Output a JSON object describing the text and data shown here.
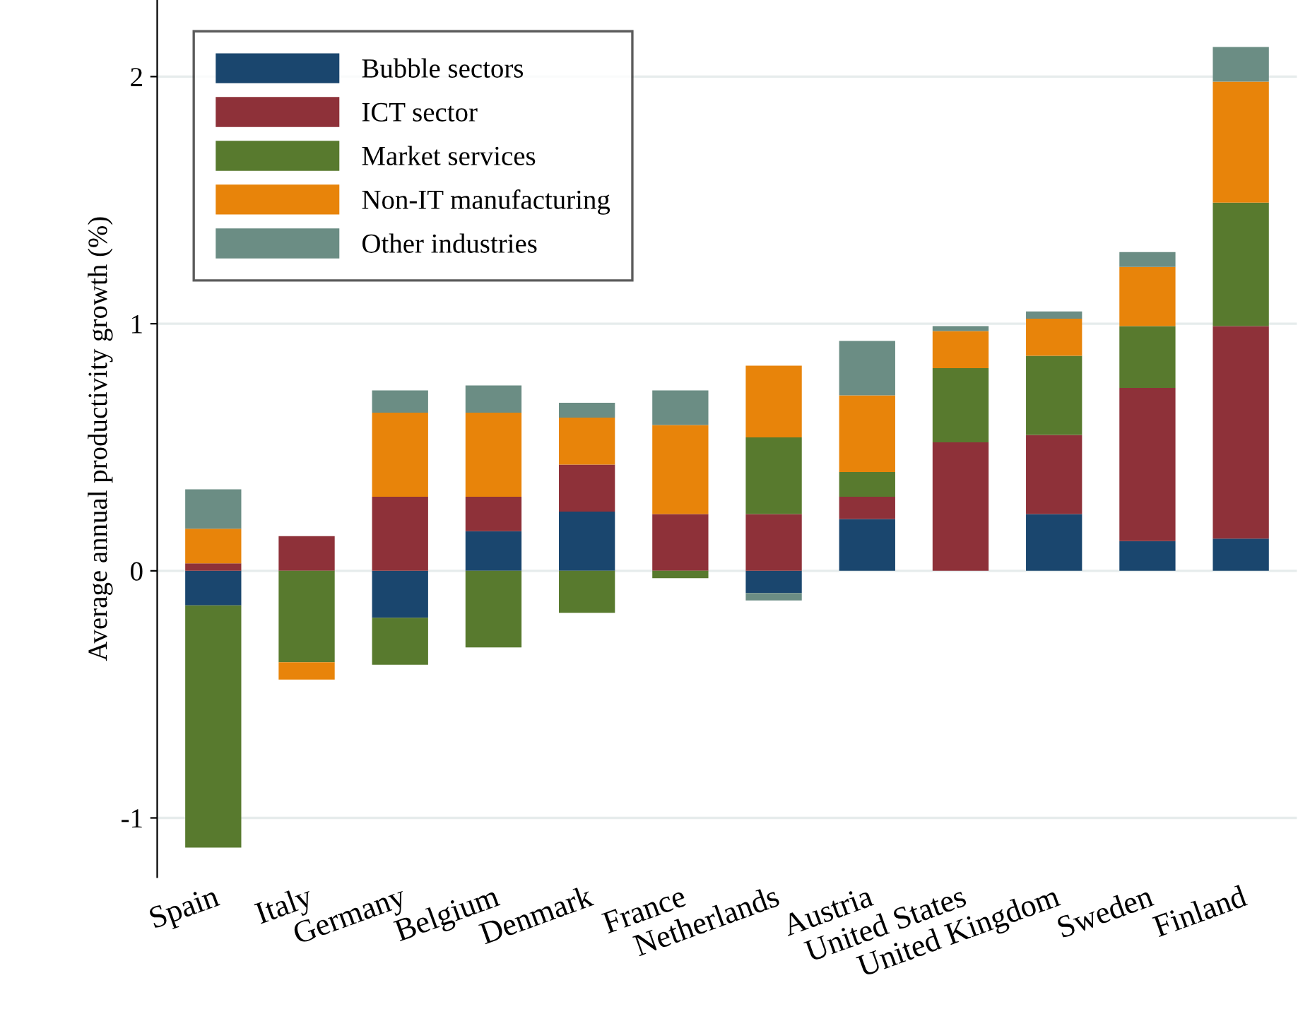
{
  "chart_data": {
    "type": "bar",
    "stacked": true,
    "ylabel": "Average annual productivity growth (%)",
    "categories": [
      "Spain",
      "Italy",
      "Germany",
      "Belgium",
      "Denmark",
      "France",
      "Netherlands",
      "Austria",
      "United States",
      "United Kingdom",
      "Sweden",
      "Finland"
    ],
    "series": [
      {
        "name": "Bubble sectors",
        "color": "#1a466e",
        "values": [
          -0.14,
          null,
          -0.19,
          0.16,
          0.24,
          null,
          -0.09,
          0.21,
          null,
          0.23,
          0.12,
          0.13
        ]
      },
      {
        "name": "ICT sector",
        "color": "#8e3139",
        "values": [
          0.03,
          0.14,
          0.3,
          0.14,
          0.19,
          0.23,
          0.23,
          0.09,
          0.52,
          0.32,
          0.62,
          0.86
        ]
      },
      {
        "name": "Market services",
        "color": "#587a2e",
        "values": [
          -0.98,
          -0.37,
          -0.19,
          -0.31,
          -0.17,
          -0.03,
          0.31,
          0.1,
          0.3,
          0.32,
          0.25,
          0.5
        ]
      },
      {
        "name": "Non-IT manufacturing",
        "color": "#e8840a",
        "values": [
          0.14,
          -0.07,
          0.34,
          0.34,
          0.19,
          0.36,
          0.29,
          0.31,
          0.15,
          0.15,
          0.24,
          0.49
        ]
      },
      {
        "name": "Other industries",
        "color": "#6b8d84",
        "values": [
          0.16,
          null,
          0.09,
          0.11,
          0.06,
          0.14,
          -0.03,
          0.22,
          0.02,
          0.03,
          0.06,
          0.14
        ]
      }
    ],
    "ylim": [
      -1.24,
      2.31
    ],
    "yticks": [
      -1,
      0,
      1,
      2
    ],
    "grid": "y",
    "legend": "top left"
  }
}
